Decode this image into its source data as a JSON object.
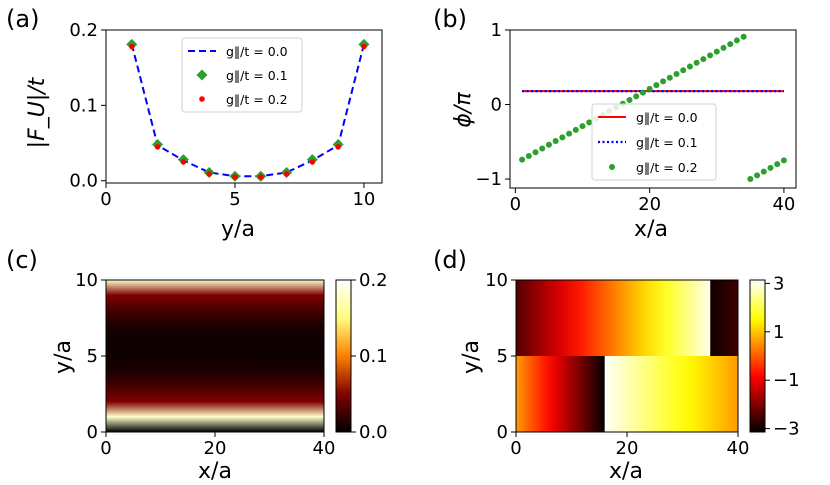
{
  "chart_data": [
    {
      "panel": "(a)",
      "type": "line",
      "xlabel": "y/a",
      "ylabel": "|F_U|/t",
      "xlim": [
        0,
        10.7
      ],
      "ylim": [
        -0.003,
        0.2
      ],
      "xticks": [
        "0",
        "5",
        "10"
      ],
      "yticks": [
        "0.0",
        "0.1",
        "0.2"
      ],
      "legend_position": "upper-center",
      "series": [
        {
          "name": "g‖/t = 0.0",
          "style": "dashed-line",
          "color": "#0000ff",
          "x": [
            1,
            2,
            3,
            4,
            5,
            6,
            7,
            8,
            9,
            10
          ],
          "values": [
            0.181,
            0.047,
            0.027,
            0.011,
            0.006,
            0.006,
            0.011,
            0.027,
            0.047,
            0.181
          ]
        },
        {
          "name": "g‖/t = 0.1",
          "style": "diamond-marker",
          "color": "#2ca02c",
          "x": [
            1,
            2,
            3,
            4,
            5,
            6,
            7,
            8,
            9,
            10
          ],
          "values": [
            0.181,
            0.048,
            0.028,
            0.011,
            0.006,
            0.006,
            0.011,
            0.028,
            0.048,
            0.181
          ]
        },
        {
          "name": "g‖/t = 0.2",
          "style": "dot-marker",
          "color": "#ff0000",
          "x": [
            1,
            2,
            3,
            4,
            5,
            6,
            7,
            8,
            9,
            10
          ],
          "values": [
            0.178,
            0.045,
            0.025,
            0.009,
            0.005,
            0.005,
            0.009,
            0.025,
            0.045,
            0.178
          ]
        }
      ]
    },
    {
      "panel": "(b)",
      "type": "scatter",
      "xlabel": "x/a",
      "ylabel": "ϕ/π",
      "xlim": [
        -0.8,
        41.8
      ],
      "ylim": [
        -1.12,
        1.0
      ],
      "xticks": [
        "0",
        "20",
        "40"
      ],
      "yticks": [
        "−1",
        "0",
        "1"
      ],
      "legend_position": "lower-center",
      "series": [
        {
          "name": "g‖/t = 0.0",
          "style": "solid-line",
          "color": "#ff0000",
          "x": [
            1,
            40
          ],
          "values": [
            0.18,
            0.18
          ]
        },
        {
          "name": "g‖/t = 0.1",
          "style": "dotted-line",
          "color": "#0000ff",
          "x": [
            1,
            40
          ],
          "values": [
            0.18,
            0.18
          ]
        },
        {
          "name": "g‖/t = 0.2",
          "style": "dots",
          "color": "#2ca02c",
          "segments": [
            {
              "x_from": 1,
              "x_to": 34,
              "phi_start": -0.74,
              "phi_step": 0.05
            },
            {
              "x_from": 35,
              "x_to": 40,
              "phi_start": -1.0,
              "phi_step": 0.05
            }
          ]
        }
      ]
    },
    {
      "panel": "(c)",
      "type": "heatmap",
      "xlabel": "x/a",
      "ylabel": "y/a",
      "xlim": [
        0,
        40
      ],
      "ylim": [
        0,
        10
      ],
      "xticks": [
        "0",
        "20",
        "40"
      ],
      "yticks": [
        "0",
        "5",
        "10"
      ],
      "colorbar_ticks": [
        "0.0",
        "0.1",
        "0.2"
      ],
      "colorbar_range": [
        0,
        0.2
      ],
      "rows_y": [
        0,
        1,
        2,
        3,
        4,
        5,
        6,
        7,
        8,
        9,
        10
      ],
      "row_values": [
        0.0,
        0.18,
        0.05,
        0.027,
        0.011,
        0.006,
        0.006,
        0.011,
        0.027,
        0.05,
        0.18
      ]
    },
    {
      "panel": "(d)",
      "type": "heatmap",
      "xlabel": "x/a",
      "ylabel": "y/a",
      "xlim": [
        0,
        40
      ],
      "ylim": [
        0,
        10
      ],
      "xticks": [
        "0",
        "20",
        "40"
      ],
      "yticks": [
        "0",
        "5",
        "10"
      ],
      "colorbar_ticks": [
        "3",
        "1",
        "−1",
        "−3"
      ],
      "colorbar_range": [
        -3.14,
        3.14
      ],
      "regions": [
        {
          "y_range": [
            5,
            10
          ],
          "x_range": [
            0,
            35
          ],
          "phase_start": -2.4,
          "phase_end": 3.0
        },
        {
          "y_range": [
            5,
            10
          ],
          "x_range": [
            35,
            40
          ],
          "phase_start": -3.0,
          "phase_end": -2.6
        },
        {
          "y_range": [
            0,
            5
          ],
          "x_range": [
            0,
            16
          ],
          "phase_start": 0.6,
          "phase_end": -3.1
        },
        {
          "y_range": [
            0,
            5
          ],
          "x_range": [
            16,
            40
          ],
          "phase_start": 3.1,
          "phase_end": 0.6
        }
      ]
    }
  ]
}
